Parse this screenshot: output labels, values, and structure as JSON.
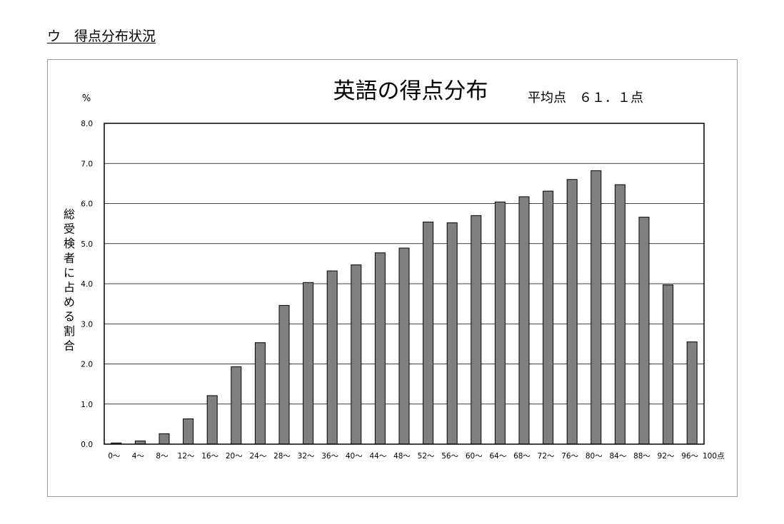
{
  "section_heading": "ウ　得点分布状況",
  "chart_data": {
    "type": "bar",
    "title": "英語の得点分布",
    "subtitle": "平均点　６１．１点",
    "ylabel": "総受検者に占める割合",
    "yunit": "%",
    "xlabel": "",
    "x_end_label": "100点",
    "ylim": [
      0,
      8
    ],
    "ytick_labels": [
      "0.0",
      "1.0",
      "2.0",
      "3.0",
      "4.0",
      "5.0",
      "6.0",
      "7.0",
      "8.0"
    ],
    "grid": true,
    "categories": [
      "0〜",
      "4〜",
      "8〜",
      "12〜",
      "16〜",
      "20〜",
      "24〜",
      "28〜",
      "32〜",
      "36〜",
      "40〜",
      "44〜",
      "48〜",
      "52〜",
      "56〜",
      "60〜",
      "64〜",
      "68〜",
      "72〜",
      "76〜",
      "80〜",
      "84〜",
      "88〜",
      "92〜",
      "96〜"
    ],
    "values": [
      0.03,
      0.08,
      0.26,
      0.63,
      1.21,
      1.93,
      2.53,
      3.46,
      4.03,
      4.32,
      4.47,
      4.77,
      4.89,
      5.54,
      5.52,
      5.7,
      6.04,
      6.17,
      6.31,
      6.6,
      6.82,
      6.47,
      5.66,
      3.97,
      2.55
    ],
    "bar_color": "#808080"
  }
}
